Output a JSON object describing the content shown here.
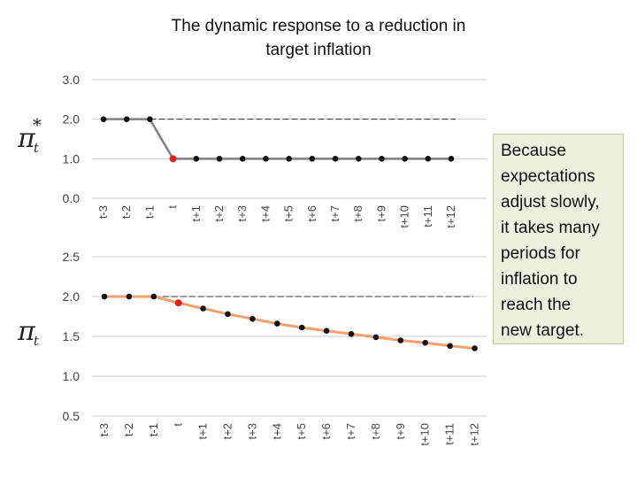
{
  "slide": {
    "title_line1": "The dynamic response to a reduction in",
    "title_line2": "target inflation",
    "annotation_lines": [
      "Because",
      "expectations",
      "adjust slowly,",
      "it takes many",
      "periods for",
      "inflation to",
      "reach the",
      "new target."
    ]
  },
  "chart_data": [
    {
      "type": "line",
      "ylabel_symbol": "π",
      "ylabel_sub": "t",
      "ylabel_sup": "*",
      "categories": [
        "t-3",
        "t-2",
        "t-1",
        "t",
        "t+1",
        "t+2",
        "t+3",
        "t+4",
        "t+5",
        "t+6",
        "t+7",
        "t+8",
        "t+9",
        "t+10",
        "t+11",
        "t+12"
      ],
      "values": [
        2.0,
        2.0,
        2.0,
        1.0,
        1.0,
        1.0,
        1.0,
        1.0,
        1.0,
        1.0,
        1.0,
        1.0,
        1.0,
        1.0,
        1.0,
        1.0
      ],
      "ylim": [
        0.0,
        3.0
      ],
      "yticks": [
        "3.0",
        "2.0",
        "1.0",
        "0.0"
      ],
      "reference_line": 2.0,
      "highlight_category": "t",
      "line_color": "#808080",
      "highlight_color": "#e0201c"
    },
    {
      "type": "line",
      "ylabel_symbol": "π",
      "ylabel_sub": "t",
      "categories": [
        "t-3",
        "t-2",
        "t-1",
        "t",
        "t+1",
        "t+2",
        "t+3",
        "t+4",
        "t+5",
        "t+6",
        "t+7",
        "t+8",
        "t+9",
        "t+10",
        "t+11",
        "t+12"
      ],
      "values": [
        2.0,
        2.0,
        2.0,
        1.92,
        1.85,
        1.78,
        1.72,
        1.66,
        1.61,
        1.57,
        1.53,
        1.49,
        1.45,
        1.42,
        1.38,
        1.35
      ],
      "ylim": [
        0.5,
        2.5
      ],
      "yticks": [
        "2.5",
        "2.0",
        "1.5",
        "1.0",
        "0.5"
      ],
      "reference_line": 2.0,
      "highlight_category": "t",
      "line_color": "#f0a070",
      "highlight_color": "#e0201c"
    }
  ]
}
